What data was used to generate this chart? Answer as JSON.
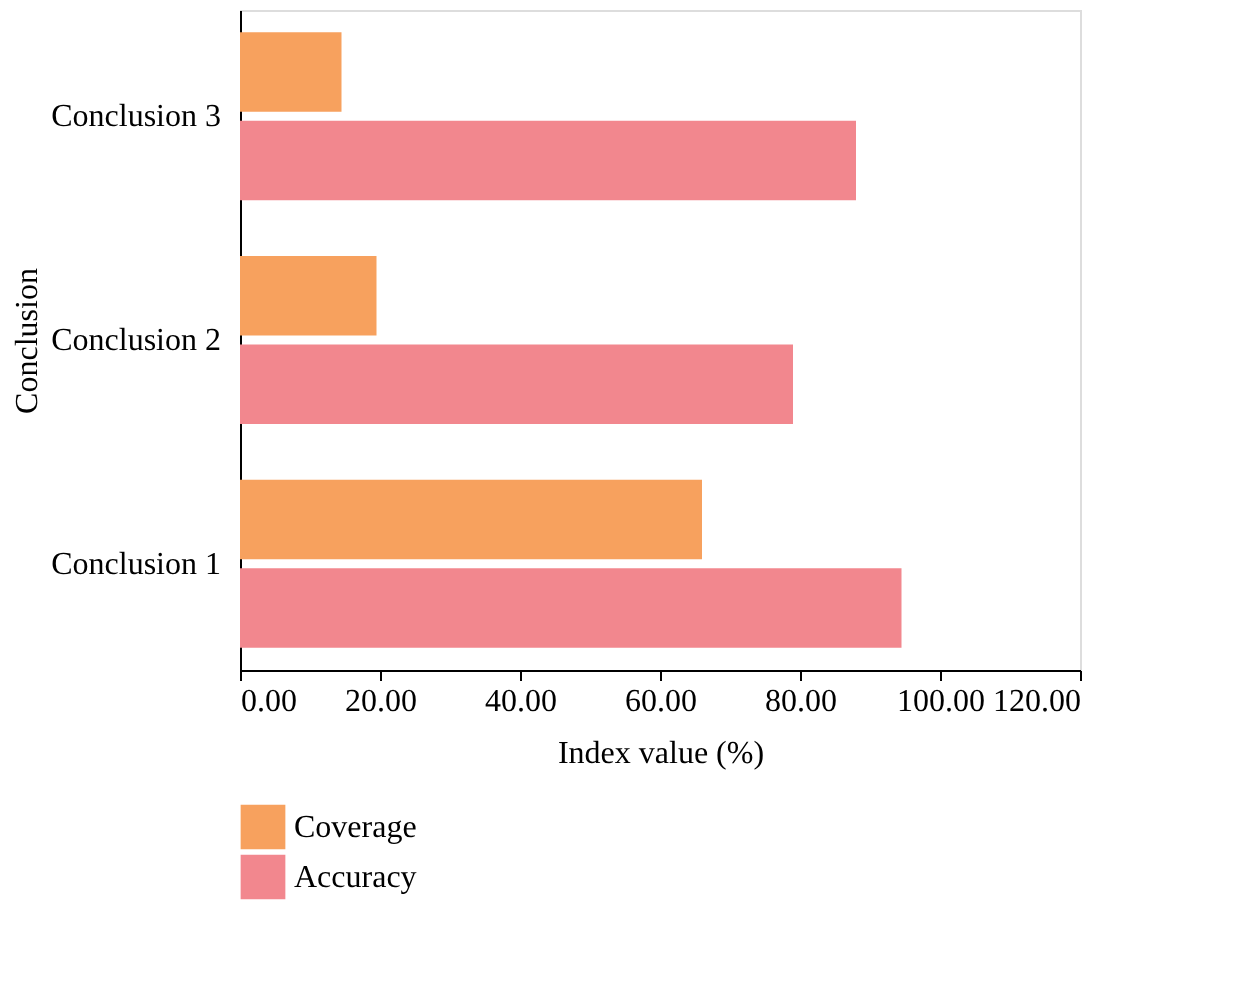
{
  "chart_data": {
    "type": "bar",
    "orientation": "horizontal",
    "xlabel": "Index value (%)",
    "ylabel": "Conclusion",
    "categories": [
      "Conclusion 3",
      "Conclusion 2",
      "Conclusion 1"
    ],
    "series": [
      {
        "name": "Coverage",
        "color": "#f7a15e",
        "values": [
          14.5,
          19.5,
          66
        ]
      },
      {
        "name": "Accuracy",
        "color": "#f2878e",
        "values": [
          88,
          79,
          94.5
        ]
      }
    ],
    "xlim": [
      0,
      120
    ],
    "xticks": [
      {
        "value": 0,
        "label": "0.00"
      },
      {
        "value": 20,
        "label": "20.00"
      },
      {
        "value": 40,
        "label": "40.00"
      },
      {
        "value": 60,
        "label": "60.00"
      },
      {
        "value": 80,
        "label": "80.00"
      },
      {
        "value": 100,
        "label": "100.00"
      },
      {
        "value": 120,
        "label": "120.00"
      }
    ],
    "grid": false,
    "legend": "bottom"
  }
}
